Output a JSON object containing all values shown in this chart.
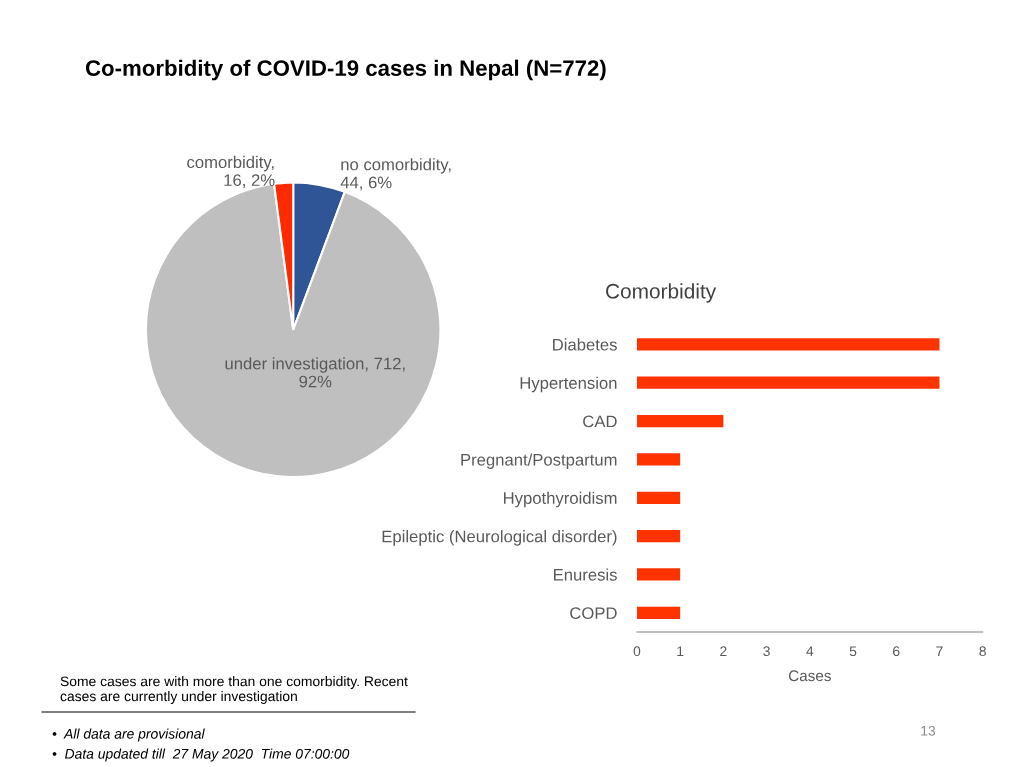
{
  "chart_data": [
    {
      "type": "pie",
      "title": "Co-morbidity of COVID-19 cases in Nepal (N=772)",
      "categories": [
        "no comorbidity",
        "under investigation",
        "comorbidity"
      ],
      "values": [
        44,
        712,
        16
      ],
      "value_labels": [
        ",\n44, 6%",
        ", 712,\n92%",
        ",\n16, 2%"
      ],
      "colors": [
        "#2f5597",
        "#bfbfbf",
        "#ff2a00"
      ],
      "annotations": [
        "Some cases are with more than one comorbidity. Recent\ncases are currently under investigation",
        "•  All data are provisional",
        "•  Data updated till  27 May 2020  Time 07:00:00",
        "13"
      ]
    },
    {
      "type": "bar",
      "title": "Comorbidity",
      "orientation": "horizontal",
      "xlabel": "Cases",
      "categories": [
        "Diabetes",
        "Hypertension",
        "CAD",
        "Pregnant/Postpartum",
        "Hypothyroidism",
        "Epileptic (Neurological disorder)",
        "Enuresis",
        "COPD"
      ],
      "values": [
        7,
        7,
        2,
        1,
        1,
        1,
        1,
        1
      ],
      "color": "#ff3300",
      "xlim": [
        0,
        8
      ],
      "xticks": [
        0,
        1,
        2,
        3,
        4,
        5,
        6,
        7,
        8
      ],
      "grid": false,
      "legend": false
    }
  ]
}
